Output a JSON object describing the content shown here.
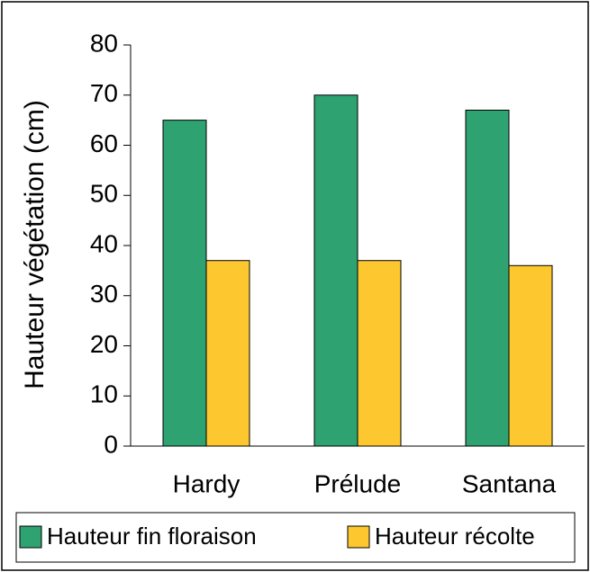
{
  "chart_data": {
    "type": "bar",
    "categories": [
      "Hardy",
      "Prélude",
      "Santana"
    ],
    "series": [
      {
        "name": "Hauteur fin floraison",
        "color": "#2ea270",
        "values": [
          65,
          70,
          67
        ]
      },
      {
        "name": "Hauteur récolte",
        "color": "#fdc82f",
        "values": [
          37,
          37,
          36
        ]
      }
    ],
    "y_label": "Hauteur végétation (cm)",
    "ylim": [
      0,
      80
    ],
    "yticks": [
      0,
      10,
      20,
      30,
      40,
      50,
      60,
      70,
      80
    ],
    "legend": "bottom"
  }
}
